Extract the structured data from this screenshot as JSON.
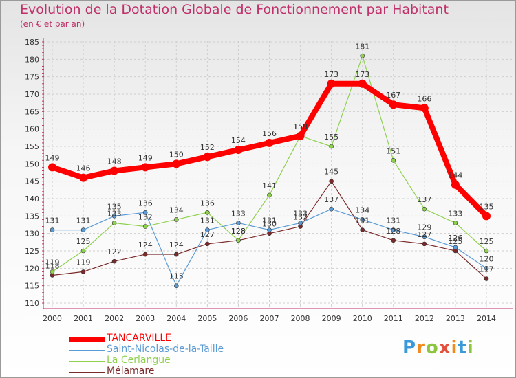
{
  "header": {
    "title": "Evolution de la Dotation Globale de Fonctionnement par Habitant",
    "subtitle": "(en € et par an)"
  },
  "logo": {
    "text": "Proxiti",
    "letters": [
      "P",
      "r",
      "o",
      "x",
      "i",
      "t",
      "i"
    ]
  },
  "chart_data": {
    "type": "line",
    "title": "Evolution de la Dotation Globale de Fonctionnement par Habitant",
    "subtitle": "(en € et par an)",
    "xlabel": "",
    "ylabel": "",
    "x": [
      "2000",
      "2001",
      "2002",
      "2003",
      "2004",
      "2005",
      "2006",
      "2007",
      "2008",
      "2009",
      "2010",
      "2011",
      "2012",
      "2013",
      "2014"
    ],
    "ylim": [
      110,
      185
    ],
    "yticks": [
      110,
      115,
      120,
      125,
      130,
      135,
      140,
      145,
      150,
      155,
      160,
      165,
      170,
      175,
      180,
      185
    ],
    "grid": true,
    "legend_position": "bottom-left",
    "series": [
      {
        "name": "TANCARVILLE",
        "color": "#ff0000",
        "values": [
          149,
          146,
          148,
          149,
          150,
          152,
          154,
          156,
          158,
          173,
          173,
          167,
          166,
          144,
          135
        ]
      },
      {
        "name": "Saint-Nicolas-de-la-Taille",
        "color": "#5b9bd5",
        "values": [
          131,
          131,
          135,
          136,
          115,
          131,
          133,
          131,
          133,
          137,
          134,
          131,
          129,
          126,
          120
        ]
      },
      {
        "name": "La Cerlangue",
        "color": "#8fd14f",
        "values": [
          119,
          125,
          133,
          132,
          134,
          136,
          128,
          141,
          158,
          155,
          181,
          151,
          137,
          133,
          125
        ]
      },
      {
        "name": "Mélamare",
        "color": "#7b2a2a",
        "values": [
          118,
          119,
          122,
          124,
          124,
          127,
          128,
          130,
          132,
          145,
          131,
          128,
          127,
          125,
          117
        ]
      }
    ]
  }
}
